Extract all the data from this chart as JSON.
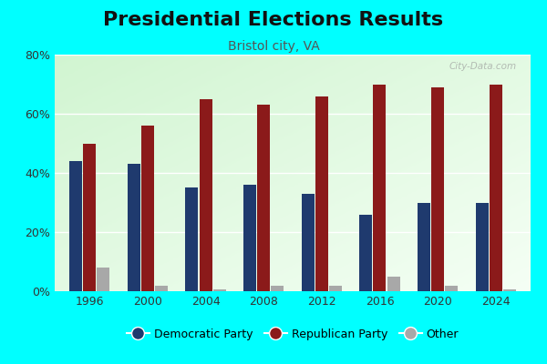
{
  "title": "Presidential Elections Results",
  "subtitle": "Bristol city, VA",
  "years": [
    1996,
    2000,
    2004,
    2008,
    2012,
    2016,
    2020,
    2024
  ],
  "democratic": [
    44,
    43,
    35,
    36,
    33,
    26,
    30,
    30
  ],
  "republican": [
    50,
    56,
    65,
    63,
    66,
    70,
    69,
    70
  ],
  "other": [
    8,
    2,
    0.5,
    2,
    2,
    5,
    2,
    0.5
  ],
  "dem_color": "#1f3a6e",
  "rep_color": "#8b1a1a",
  "other_color": "#a8a8a8",
  "bg_outer": "#00ffff",
  "ylim": [
    0,
    80
  ],
  "yticks": [
    0,
    20,
    40,
    60,
    80
  ],
  "ytick_labels": [
    "0%",
    "20%",
    "40%",
    "60%",
    "80%"
  ],
  "bar_width": 0.22,
  "title_fontsize": 16,
  "subtitle_fontsize": 10,
  "watermark": "City-Data.com"
}
